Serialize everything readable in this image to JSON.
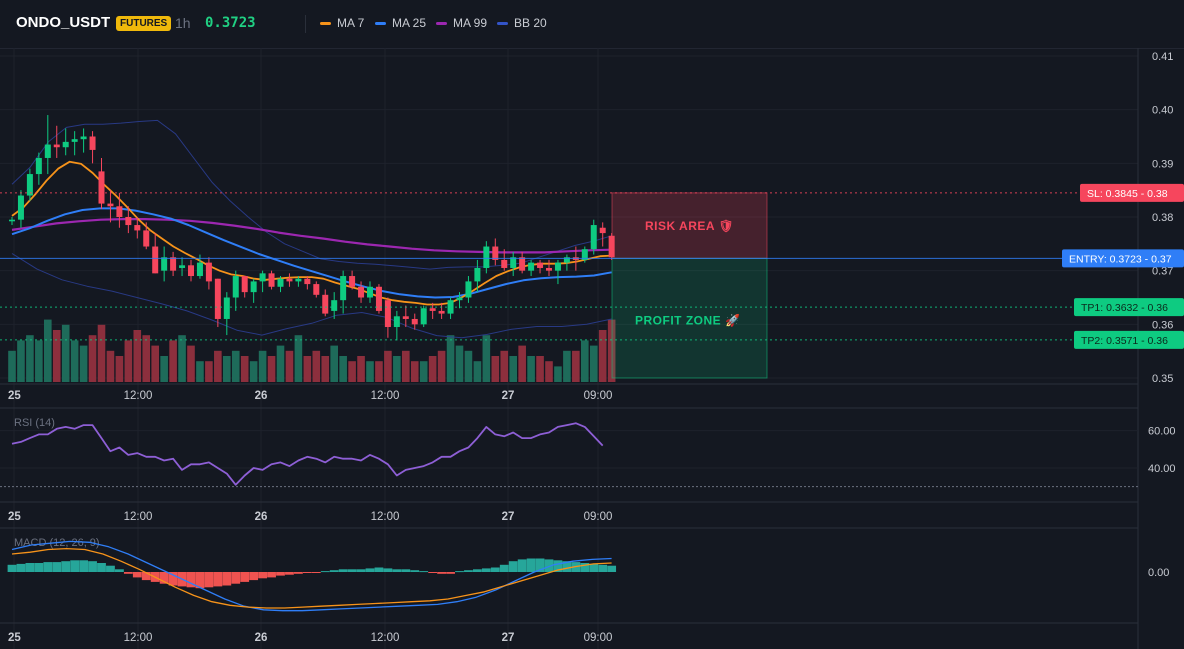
{
  "header": {
    "symbol": "ONDO_USDT",
    "badge": "FUTURES",
    "timeframe": "1h",
    "price": "0.3723",
    "legend": [
      {
        "label": "MA 7",
        "color": "#f7931a"
      },
      {
        "label": "MA 25",
        "color": "#2f7ef7"
      },
      {
        "label": "MA 99",
        "color": "#9c27b0"
      },
      {
        "label": "BB 20",
        "color": "#3354c8"
      }
    ]
  },
  "colors": {
    "up": "#0ecb81",
    "down": "#f6465d",
    "vol_up": "#1e6b5a",
    "vol_down": "#8c2f3d",
    "bb": "#2a3d8f",
    "rsi": "#8e5fd6",
    "macd_line": "#2f7ef7",
    "signal_line": "#f7931a",
    "hist_up": "#26a69a",
    "hist_down": "#ef5350",
    "sl": "#f6465d",
    "entry": "#2f7ef7",
    "tp": "#0ecb81"
  },
  "chart_data": [
    {
      "type": "candlestick",
      "title": "ONDO_USDT 1h",
      "ylim": [
        0.35,
        0.41
      ],
      "y_ticks": [
        "0.41",
        "0.40",
        "0.39",
        "0.38",
        "0.37",
        "0.36",
        "0.35"
      ],
      "x_tick_labels": [
        "25",
        "12:00",
        "26",
        "12:00",
        "27",
        "09:00"
      ],
      "candles": [
        [
          0.3792,
          0.38,
          0.3785,
          0.3795
        ],
        [
          0.3795,
          0.385,
          0.378,
          0.384
        ],
        [
          0.384,
          0.389,
          0.383,
          0.388
        ],
        [
          0.388,
          0.392,
          0.386,
          0.391
        ],
        [
          0.391,
          0.399,
          0.388,
          0.3935
        ],
        [
          0.3935,
          0.397,
          0.391,
          0.393
        ],
        [
          0.393,
          0.3965,
          0.3915,
          0.394
        ],
        [
          0.394,
          0.396,
          0.3915,
          0.3945
        ],
        [
          0.3945,
          0.3965,
          0.392,
          0.395
        ],
        [
          0.395,
          0.396,
          0.39,
          0.3925
        ],
        [
          0.3885,
          0.391,
          0.3815,
          0.3825
        ],
        [
          0.3825,
          0.385,
          0.379,
          0.382
        ],
        [
          0.382,
          0.3845,
          0.378,
          0.38
        ],
        [
          0.38,
          0.382,
          0.377,
          0.3785
        ],
        [
          0.3785,
          0.38,
          0.376,
          0.3775
        ],
        [
          0.3775,
          0.379,
          0.374,
          0.3745
        ],
        [
          0.3745,
          0.377,
          0.3695,
          0.3695
        ],
        [
          0.37,
          0.3745,
          0.368,
          0.3725
        ],
        [
          0.3725,
          0.3735,
          0.369,
          0.37
        ],
        [
          0.3705,
          0.3725,
          0.369,
          0.371
        ],
        [
          0.371,
          0.372,
          0.368,
          0.369
        ],
        [
          0.369,
          0.373,
          0.3685,
          0.3715
        ],
        [
          0.3715,
          0.3725,
          0.3665,
          0.368
        ],
        [
          0.3685,
          0.3685,
          0.3595,
          0.361
        ],
        [
          0.361,
          0.366,
          0.358,
          0.365
        ],
        [
          0.365,
          0.37,
          0.3625,
          0.369
        ],
        [
          0.369,
          0.369,
          0.365,
          0.366
        ],
        [
          0.366,
          0.3685,
          0.364,
          0.368
        ],
        [
          0.368,
          0.37,
          0.366,
          0.3695
        ],
        [
          0.3695,
          0.37,
          0.3665,
          0.367
        ],
        [
          0.367,
          0.369,
          0.366,
          0.3685
        ],
        [
          0.3685,
          0.3695,
          0.367,
          0.368
        ],
        [
          0.368,
          0.369,
          0.367,
          0.3685
        ],
        [
          0.3685,
          0.369,
          0.3665,
          0.3675
        ],
        [
          0.3675,
          0.368,
          0.365,
          0.3655
        ],
        [
          0.3655,
          0.3665,
          0.3615,
          0.362
        ],
        [
          0.3625,
          0.366,
          0.361,
          0.3645
        ],
        [
          0.3645,
          0.37,
          0.362,
          0.369
        ],
        [
          0.369,
          0.37,
          0.3665,
          0.367
        ],
        [
          0.367,
          0.368,
          0.364,
          0.365
        ],
        [
          0.365,
          0.368,
          0.364,
          0.367
        ],
        [
          0.367,
          0.3675,
          0.362,
          0.3625
        ],
        [
          0.3645,
          0.365,
          0.3575,
          0.3595
        ],
        [
          0.3595,
          0.3625,
          0.357,
          0.3615
        ],
        [
          0.3615,
          0.3635,
          0.3595,
          0.361
        ],
        [
          0.361,
          0.362,
          0.359,
          0.36
        ],
        [
          0.36,
          0.3635,
          0.3595,
          0.363
        ],
        [
          0.363,
          0.364,
          0.361,
          0.3625
        ],
        [
          0.3625,
          0.364,
          0.361,
          0.362
        ],
        [
          0.362,
          0.365,
          0.361,
          0.3645
        ],
        [
          0.3645,
          0.366,
          0.363,
          0.365
        ],
        [
          0.365,
          0.369,
          0.364,
          0.368
        ],
        [
          0.368,
          0.372,
          0.366,
          0.3705
        ],
        [
          0.3705,
          0.3755,
          0.3695,
          0.3745
        ],
        [
          0.3745,
          0.376,
          0.371,
          0.372
        ],
        [
          0.372,
          0.374,
          0.37,
          0.3705
        ],
        [
          0.3705,
          0.3735,
          0.369,
          0.3725
        ],
        [
          0.3725,
          0.3735,
          0.3695,
          0.37
        ],
        [
          0.37,
          0.372,
          0.369,
          0.3715
        ],
        [
          0.3715,
          0.372,
          0.3695,
          0.3705
        ],
        [
          0.3705,
          0.372,
          0.369,
          0.37
        ],
        [
          0.37,
          0.372,
          0.3675,
          0.3715
        ],
        [
          0.3715,
          0.373,
          0.37,
          0.3725
        ],
        [
          0.3725,
          0.3745,
          0.37,
          0.372
        ],
        [
          0.372,
          0.3745,
          0.3715,
          0.374
        ],
        [
          0.374,
          0.3795,
          0.373,
          0.3785
        ],
        [
          0.378,
          0.379,
          0.3745,
          0.377
        ],
        [
          0.3765,
          0.377,
          0.372,
          0.3725
        ]
      ],
      "volume": [
        6,
        8,
        9,
        8,
        12,
        10,
        11,
        8,
        7,
        9,
        11,
        6,
        5,
        8,
        10,
        9,
        7,
        5,
        8,
        9,
        7,
        4,
        4,
        6,
        5,
        6,
        5,
        4,
        6,
        5,
        7,
        6,
        9,
        5,
        6,
        5,
        7,
        5,
        4,
        5,
        4,
        4,
        6,
        5,
        6,
        4,
        4,
        5,
        6,
        9,
        7,
        6,
        4,
        9,
        5,
        6,
        5,
        7,
        5,
        5,
        4,
        3,
        6,
        6,
        8,
        7,
        10,
        12
      ],
      "ma7": [
        0.3802,
        0.3818,
        0.3842,
        0.3868,
        0.389,
        0.3903,
        0.3899,
        0.3882,
        0.386,
        0.384,
        0.3818,
        0.3795,
        0.3775,
        0.376,
        0.3745,
        0.3733,
        0.3722,
        0.371,
        0.37,
        0.3693,
        0.369,
        0.3685,
        0.3683,
        0.3685,
        0.3687,
        0.3688,
        0.3688,
        0.3685,
        0.3678,
        0.3672,
        0.3666,
        0.3658,
        0.365,
        0.3645,
        0.3642,
        0.364,
        0.3637,
        0.3637,
        0.364,
        0.365,
        0.3663,
        0.3677,
        0.369,
        0.3699,
        0.3706,
        0.3711,
        0.3713,
        0.3713,
        0.3714,
        0.3717,
        0.3722,
        0.3727,
        0.3728
      ],
      "ma25": [
        0.3768,
        0.3779,
        0.3793,
        0.3805,
        0.3813,
        0.3816,
        0.3816,
        0.3812,
        0.3805,
        0.3797,
        0.3785,
        0.3771,
        0.3757,
        0.3744,
        0.3731,
        0.372,
        0.3709,
        0.3699,
        0.3689,
        0.3679,
        0.367,
        0.3662,
        0.3656,
        0.3652,
        0.365,
        0.3651,
        0.3657,
        0.3666,
        0.3675,
        0.3682,
        0.3686,
        0.3688,
        0.3689,
        0.3691,
        0.3697
      ],
      "ma99": [
        0.3776,
        0.3782,
        0.3788,
        0.3792,
        0.3795,
        0.3796,
        0.3796,
        0.3795,
        0.3793,
        0.3789,
        0.3784,
        0.3778,
        0.3771,
        0.3765,
        0.376,
        0.3754,
        0.3749,
        0.3745,
        0.3741,
        0.3738,
        0.3736,
        0.3735,
        0.3734,
        0.3734,
        0.3734,
        0.3736,
        0.3738,
        0.3739
      ],
      "bb_upper": [
        0.3861,
        0.3893,
        0.394,
        0.3967,
        0.3973,
        0.3973,
        0.3975,
        0.3978,
        0.398,
        0.3955,
        0.391,
        0.3865,
        0.383,
        0.38,
        0.3772,
        0.375,
        0.3736,
        0.3722,
        0.3717,
        0.3714,
        0.3712,
        0.3709,
        0.3706,
        0.3703,
        0.3706,
        0.3707,
        0.3707,
        0.371,
        0.3714,
        0.3725,
        0.3736,
        0.3747,
        0.3755,
        0.3765
      ],
      "bb_lower": [
        0.3732,
        0.3703,
        0.3683,
        0.3671,
        0.3662,
        0.365,
        0.3638,
        0.3625,
        0.3608,
        0.3589,
        0.358,
        0.3592,
        0.3602,
        0.3617,
        0.3622,
        0.3613,
        0.3593,
        0.3579,
        0.3575,
        0.3581,
        0.3591,
        0.3596,
        0.3596,
        0.36,
        0.361
      ],
      "levels": [
        {
          "label": "SL: 0.3845",
          "axis": "0.38",
          "value": 0.3845,
          "type": "sl"
        },
        {
          "label": "ENTRY: 0.3723",
          "axis": "0.37",
          "value": 0.3723,
          "type": "entry"
        },
        {
          "label": "TP1: 0.3632",
          "axis": "0.36",
          "value": 0.3632,
          "type": "tp"
        },
        {
          "label": "TP2: 0.3571",
          "axis": "0.36",
          "value": 0.3571,
          "type": "tp"
        }
      ],
      "zones": [
        {
          "label": "RISK AREA",
          "emoji": "🛡",
          "from": 0.3723,
          "to": 0.3845,
          "type": "risk"
        },
        {
          "label": "PROFIT ZONE",
          "emoji": "🚀",
          "from": 0.35,
          "to": 0.3723,
          "type": "profit"
        }
      ]
    },
    {
      "type": "line",
      "title": "RSI (14)",
      "ylim": [
        25,
        70
      ],
      "y_ticks": [
        "60.00",
        "40.00"
      ],
      "x_tick_labels": [
        "25",
        "12:00",
        "26",
        "12:00",
        "27",
        "09:00"
      ],
      "values": [
        53,
        54,
        56,
        58,
        58,
        61,
        62,
        61,
        63,
        63,
        56,
        49,
        51,
        47,
        48,
        46,
        46,
        44,
        45,
        39,
        42,
        42,
        43,
        40,
        37,
        31,
        36,
        40,
        39,
        42,
        43,
        41,
        44,
        46,
        45,
        43,
        46,
        45,
        45,
        44,
        47,
        45,
        42,
        36,
        39,
        40,
        41,
        43,
        46,
        46,
        49,
        51,
        56,
        62,
        58,
        57,
        59,
        56,
        56,
        58,
        59,
        62,
        63,
        64,
        62,
        57,
        52
      ]
    },
    {
      "type": "line",
      "title": "MACD (12, 26, 9)",
      "y_ticks": [
        "0.00"
      ],
      "x_tick_labels": [
        "25",
        "12:00",
        "26",
        "12:00",
        "27",
        "09:00"
      ],
      "macd": [
        0.0025,
        0.003,
        0.0032,
        0.0034,
        0.0033,
        0.0028,
        0.002,
        0.001,
        0.0,
        -0.001,
        -0.002,
        -0.003,
        -0.0038,
        -0.0042,
        -0.0043,
        -0.0043,
        -0.0042,
        -0.0041,
        -0.004,
        -0.0039,
        -0.0038,
        -0.0037,
        -0.0036,
        -0.0033,
        -0.0028,
        -0.002,
        -0.001,
        0.0,
        0.0008,
        0.0012,
        0.0014,
        0.0015
      ],
      "signal": [
        0.002,
        0.0022,
        0.0025,
        0.0026,
        0.0025,
        0.002,
        0.0012,
        0.0003,
        -0.0007,
        -0.0017,
        -0.0026,
        -0.0033,
        -0.0037,
        -0.0039,
        -0.004,
        -0.004,
        -0.0039,
        -0.0038,
        -0.0037,
        -0.0036,
        -0.0035,
        -0.0034,
        -0.0033,
        -0.0032,
        -0.003,
        -0.0026,
        -0.0022,
        -0.0016,
        -0.001,
        -0.0004,
        0.0002,
        0.0006,
        0.0009,
        0.001
      ],
      "histogram": [
        0.0008,
        0.0009,
        0.001,
        0.001,
        0.0011,
        0.0011,
        0.0012,
        0.0013,
        0.0013,
        0.0012,
        0.001,
        0.0007,
        0.0003,
        -0.0002,
        -0.0006,
        -0.0009,
        -0.0011,
        -0.0013,
        -0.0015,
        -0.0016,
        -0.0017,
        -0.0018,
        -0.0017,
        -0.0016,
        -0.0015,
        -0.0013,
        -0.0011,
        -0.0009,
        -0.0007,
        -0.0006,
        -0.0004,
        -0.0003,
        -0.0002,
        -0.0001,
        -0.0001,
        0.0001,
        0.0002,
        0.0003,
        0.0003,
        0.0003,
        0.0004,
        0.0005,
        0.0004,
        0.0003,
        0.0003,
        0.0002,
        0.0001,
        -0.0001,
        -0.0002,
        -0.0002,
        0.0001,
        0.0002,
        0.0003,
        0.0004,
        0.0005,
        0.0008,
        0.0012,
        0.0014,
        0.0015,
        0.0015,
        0.0014,
        0.0013,
        0.0012,
        0.0011,
        0.001,
        0.0009,
        0.0008,
        0.0007
      ]
    }
  ]
}
